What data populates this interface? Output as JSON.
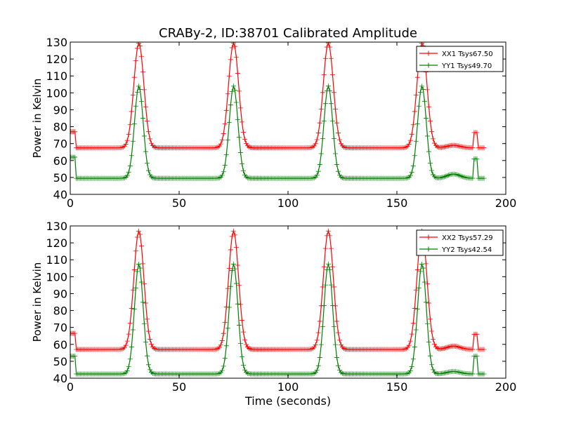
{
  "figure": {
    "title": "CRABy-2, ID:38701 Calibrated Amplitude",
    "xlabel": "Time (seconds)"
  },
  "chart_data": [
    {
      "type": "line",
      "title": "CRABy-2, ID:38701 Calibrated Amplitude",
      "xlabel": "",
      "ylabel": "Power in Kelvin",
      "xlim": [
        0,
        200
      ],
      "ylim": [
        40,
        130
      ],
      "xticks": [
        "0",
        "50",
        "100",
        "150",
        "200"
      ],
      "yticks": [
        "40",
        "50",
        "60",
        "70",
        "80",
        "90",
        "100",
        "110",
        "120",
        "130"
      ],
      "grid": false,
      "legend_position": "top-right",
      "series": [
        {
          "name": "XX1 Tsys67.50",
          "color": "#ff0000",
          "marker": "+",
          "baseline": 67.5,
          "peak": 129.5,
          "peak_times": [
            31.5,
            75,
            118.5,
            161.5
          ],
          "peak_width": 2.3,
          "initial_level": 77,
          "bump": {
            "t": 176,
            "v": 69
          },
          "spike": {
            "t": 186,
            "v": 76.5
          }
        },
        {
          "name": "YY1 Tsys49.70",
          "color": "#008000",
          "marker": "+",
          "baseline": 49.5,
          "peak": 104,
          "peak_times": [
            31.5,
            75,
            118.5,
            161.5
          ],
          "peak_width": 2.0,
          "initial_level": 62,
          "bump": {
            "t": 176,
            "v": 52
          },
          "spike": {
            "t": 186,
            "v": 61
          }
        }
      ]
    },
    {
      "type": "line",
      "title": "",
      "xlabel": "Time (seconds)",
      "ylabel": "Power in Kelvin",
      "xlim": [
        0,
        200
      ],
      "ylim": [
        40,
        130
      ],
      "xticks": [
        "0",
        "50",
        "100",
        "150",
        "200"
      ],
      "yticks": [
        "40",
        "50",
        "60",
        "70",
        "80",
        "90",
        "100",
        "110",
        "120",
        "130"
      ],
      "grid": false,
      "legend_position": "top-right",
      "series": [
        {
          "name": "XX2 Tsys57.29",
          "color": "#ff0000",
          "marker": "+",
          "baseline": 57,
          "peak": 127,
          "peak_times": [
            31.5,
            75,
            118.5,
            161.5
          ],
          "peak_width": 2.3,
          "initial_level": 66.5,
          "bump": {
            "t": 176,
            "v": 59
          },
          "spike": {
            "t": 186,
            "v": 66
          }
        },
        {
          "name": "YY2 Tsys42.54",
          "color": "#008000",
          "marker": "+",
          "baseline": 42.5,
          "peak": 107.5,
          "peak_times": [
            31.5,
            75,
            118.5,
            161.5
          ],
          "peak_width": 2.0,
          "initial_level": 53,
          "bump": {
            "t": 176,
            "v": 44
          },
          "spike": {
            "t": 186,
            "v": 53
          }
        }
      ]
    }
  ]
}
